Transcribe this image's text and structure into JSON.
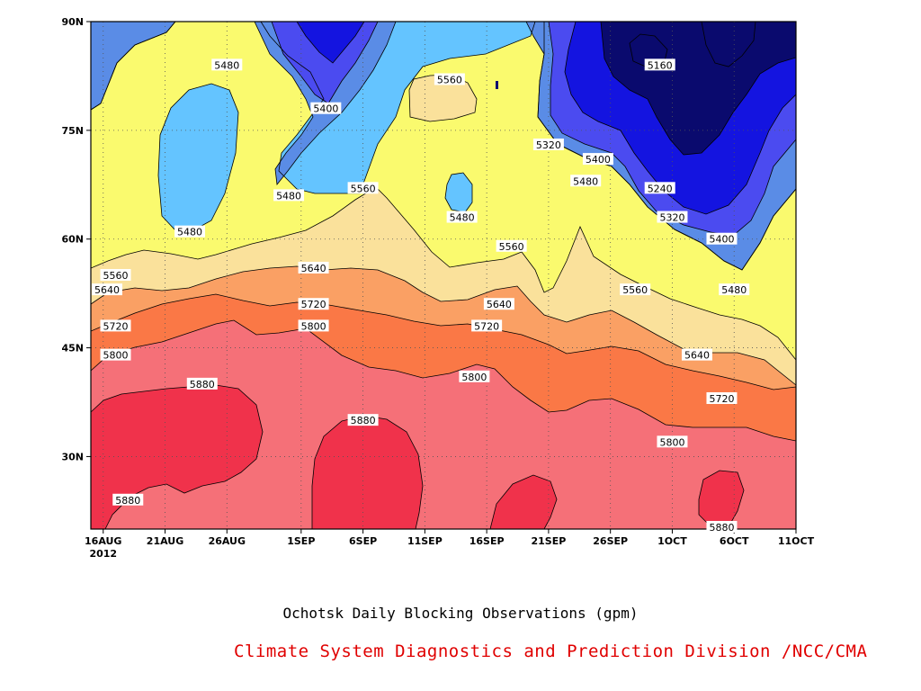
{
  "colors": {
    "5160": "#0a0a6e",
    "5240": "#1414e0",
    "5320": "#4b4bf0",
    "5400": "#5a8ce6",
    "5480": "#64c4ff",
    "5560": "#fafa6e",
    "5640": "#fae19b",
    "5720": "#faa064",
    "5800": "#fa7846",
    "5880": "#f57078",
    "5960": "#f0324b"
  },
  "chart_data": {
    "type": "heatmap",
    "title": "Ochotsk Daily Blocking Observations (gpm)",
    "credit": "Climate System Diagnostics and Prediction Division /NCC/CMA",
    "xlabel": "",
    "ylabel": "",
    "x_tick_labels": [
      "16AUG",
      "21AUG",
      "26AUG",
      "1SEP",
      "6SEP",
      "11SEP",
      "16SEP",
      "21SEP",
      "26SEP",
      "1OCT",
      "6OCT",
      "11OCT"
    ],
    "x_first_tick_year": "2012",
    "y_tick_labels": [
      "90N",
      "75N",
      "60N",
      "45N",
      "30N"
    ],
    "ylim": [
      "20N",
      "90N"
    ],
    "xlim": [
      "2012-08-15",
      "2012-10-11"
    ],
    "grid": true,
    "contour_interval_gpm": 80,
    "contour_levels": [
      5160,
      5240,
      5320,
      5400,
      5480,
      5560,
      5640,
      5720,
      5800,
      5880
    ],
    "contour_labels": [
      {
        "value": "5480",
        "date": "2012-08-26",
        "lat": "84N"
      },
      {
        "value": "5400",
        "date": "2012-09-03",
        "lat": "78N"
      },
      {
        "value": "5560",
        "date": "2012-09-13",
        "lat": "82N"
      },
      {
        "value": "5160",
        "date": "2012-09-30",
        "lat": "84N"
      },
      {
        "value": "5320",
        "date": "2012-09-21",
        "lat": "73N"
      },
      {
        "value": "5400",
        "date": "2012-09-25",
        "lat": "71N"
      },
      {
        "value": "5480",
        "date": "2012-09-24",
        "lat": "68N"
      },
      {
        "value": "5240",
        "date": "2012-09-30",
        "lat": "67N"
      },
      {
        "value": "5480",
        "date": "2012-08-31",
        "lat": "66N"
      },
      {
        "value": "5560",
        "date": "2012-09-06",
        "lat": "67N"
      },
      {
        "value": "5480",
        "date": "2012-09-14",
        "lat": "63N"
      },
      {
        "value": "5320",
        "date": "2012-10-01",
        "lat": "63N"
      },
      {
        "value": "5480",
        "date": "2012-08-23",
        "lat": "61N"
      },
      {
        "value": "5400",
        "date": "2012-10-05",
        "lat": "60N"
      },
      {
        "value": "5560",
        "date": "2012-09-18",
        "lat": "59N"
      },
      {
        "value": "5560",
        "date": "2012-08-17",
        "lat": "55N"
      },
      {
        "value": "5640",
        "date": "2012-09-02",
        "lat": "56N"
      },
      {
        "value": "5640",
        "date": "2012-08-14",
        "lat": "53N"
      },
      {
        "value": "5560",
        "date": "2012-09-28",
        "lat": "53N"
      },
      {
        "value": "5480",
        "date": "2012-10-06",
        "lat": "53N"
      },
      {
        "value": "5720",
        "date": "2012-09-02",
        "lat": "51N"
      },
      {
        "value": "5640",
        "date": "2012-09-17",
        "lat": "51N"
      },
      {
        "value": "5720",
        "date": "2012-08-17",
        "lat": "48N"
      },
      {
        "value": "5800",
        "date": "2012-09-02",
        "lat": "48N"
      },
      {
        "value": "5720",
        "date": "2012-09-16",
        "lat": "48N"
      },
      {
        "value": "5800",
        "date": "2012-08-17",
        "lat": "44N"
      },
      {
        "value": "5640",
        "date": "2012-10-03",
        "lat": "44N"
      },
      {
        "value": "5800",
        "date": "2012-09-15",
        "lat": "41N"
      },
      {
        "value": "5880",
        "date": "2012-08-24",
        "lat": "40N"
      },
      {
        "value": "5720",
        "date": "2012-10-05",
        "lat": "38N"
      },
      {
        "value": "5880",
        "date": "2012-09-06",
        "lat": "35N"
      },
      {
        "value": "5800",
        "date": "2012-10-01",
        "lat": "32N"
      },
      {
        "value": "5880",
        "date": "2012-08-18",
        "lat": "24N"
      },
      {
        "value": "5880",
        "date": "2012-10-05",
        "lat": "20N"
      }
    ]
  }
}
